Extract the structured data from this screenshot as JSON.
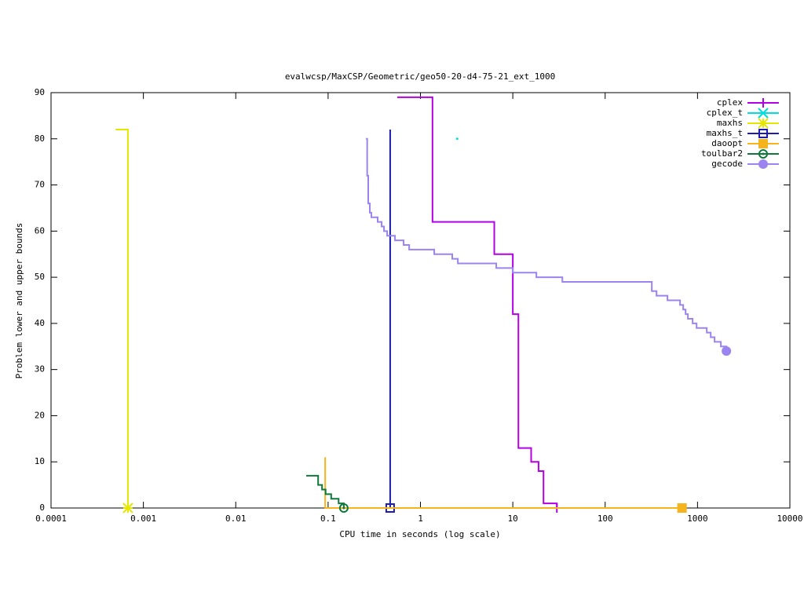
{
  "chart_data": {
    "type": "step",
    "title": "evalwcsp/MaxCSP/Geometric/geo50-20-d4-75-21_ext_1000",
    "x_label": "CPU time in seconds (log scale)",
    "y_label": "Problem lower and upper bounds",
    "xscale": "log",
    "xlim": [
      0.0001,
      10000
    ],
    "xticks": [
      0.0001,
      0.001,
      0.01,
      0.1,
      1,
      10,
      100,
      1000,
      10000
    ],
    "ylim": [
      0,
      90
    ],
    "yticks": [
      0,
      10,
      20,
      30,
      40,
      50,
      60,
      70,
      80,
      90
    ],
    "legend": "top-right",
    "series": [
      {
        "name": "cplex",
        "color": "#b400e6",
        "marker": "plus",
        "x": [
          0.56,
          1.35,
          6.3,
          10,
          11.5,
          15.8,
          19,
          21.5,
          30
        ],
        "values": [
          89,
          62,
          55,
          42,
          13,
          10,
          8,
          1,
          0
        ]
      },
      {
        "name": "cplex_t",
        "color": "#00dede",
        "marker": "cross",
        "x": [
          2.5
        ],
        "values": [
          80
        ]
      },
      {
        "name": "maxhs",
        "color": "#e6e600",
        "marker": "star",
        "x": [
          0.0005,
          0.00068
        ],
        "values": [
          82,
          0
        ]
      },
      {
        "name": "maxhs_t",
        "color": "#1c1cb0",
        "marker": "square",
        "x": [
          0.47,
          0.47
        ],
        "values": [
          82,
          0
        ]
      },
      {
        "name": "daoopt",
        "color": "#f5b41c",
        "marker": "filled-square",
        "x": [
          0.093,
          0.093,
          680
        ],
        "values": [
          11,
          0,
          0
        ]
      },
      {
        "name": "toulbar2",
        "color": "#10783a",
        "marker": "circle",
        "x": [
          0.058,
          0.078,
          0.086,
          0.094,
          0.108,
          0.13,
          0.148
        ],
        "values": [
          7,
          5,
          4,
          3,
          2,
          1,
          0
        ]
      },
      {
        "name": "gecode",
        "color": "#9c84f0",
        "marker": "filled-circle",
        "x": [
          0.257,
          0.265,
          0.272,
          0.283,
          0.294,
          0.344,
          0.38,
          0.403,
          0.436,
          0.53,
          0.657,
          0.755,
          1.41,
          2.21,
          2.54,
          6.62,
          10,
          18,
          34.4,
          320,
          360,
          473,
          647,
          700,
          743,
          787,
          885,
          977,
          1260,
          1390,
          1530,
          1790,
          2055
        ],
        "values": [
          80,
          72,
          66,
          64,
          63,
          62,
          61,
          60,
          59,
          58,
          57,
          56,
          55,
          54,
          53,
          52,
          51,
          50,
          49,
          47,
          46,
          45,
          44,
          43,
          42,
          41,
          40,
          39,
          38,
          37,
          36,
          35,
          34
        ]
      }
    ]
  }
}
